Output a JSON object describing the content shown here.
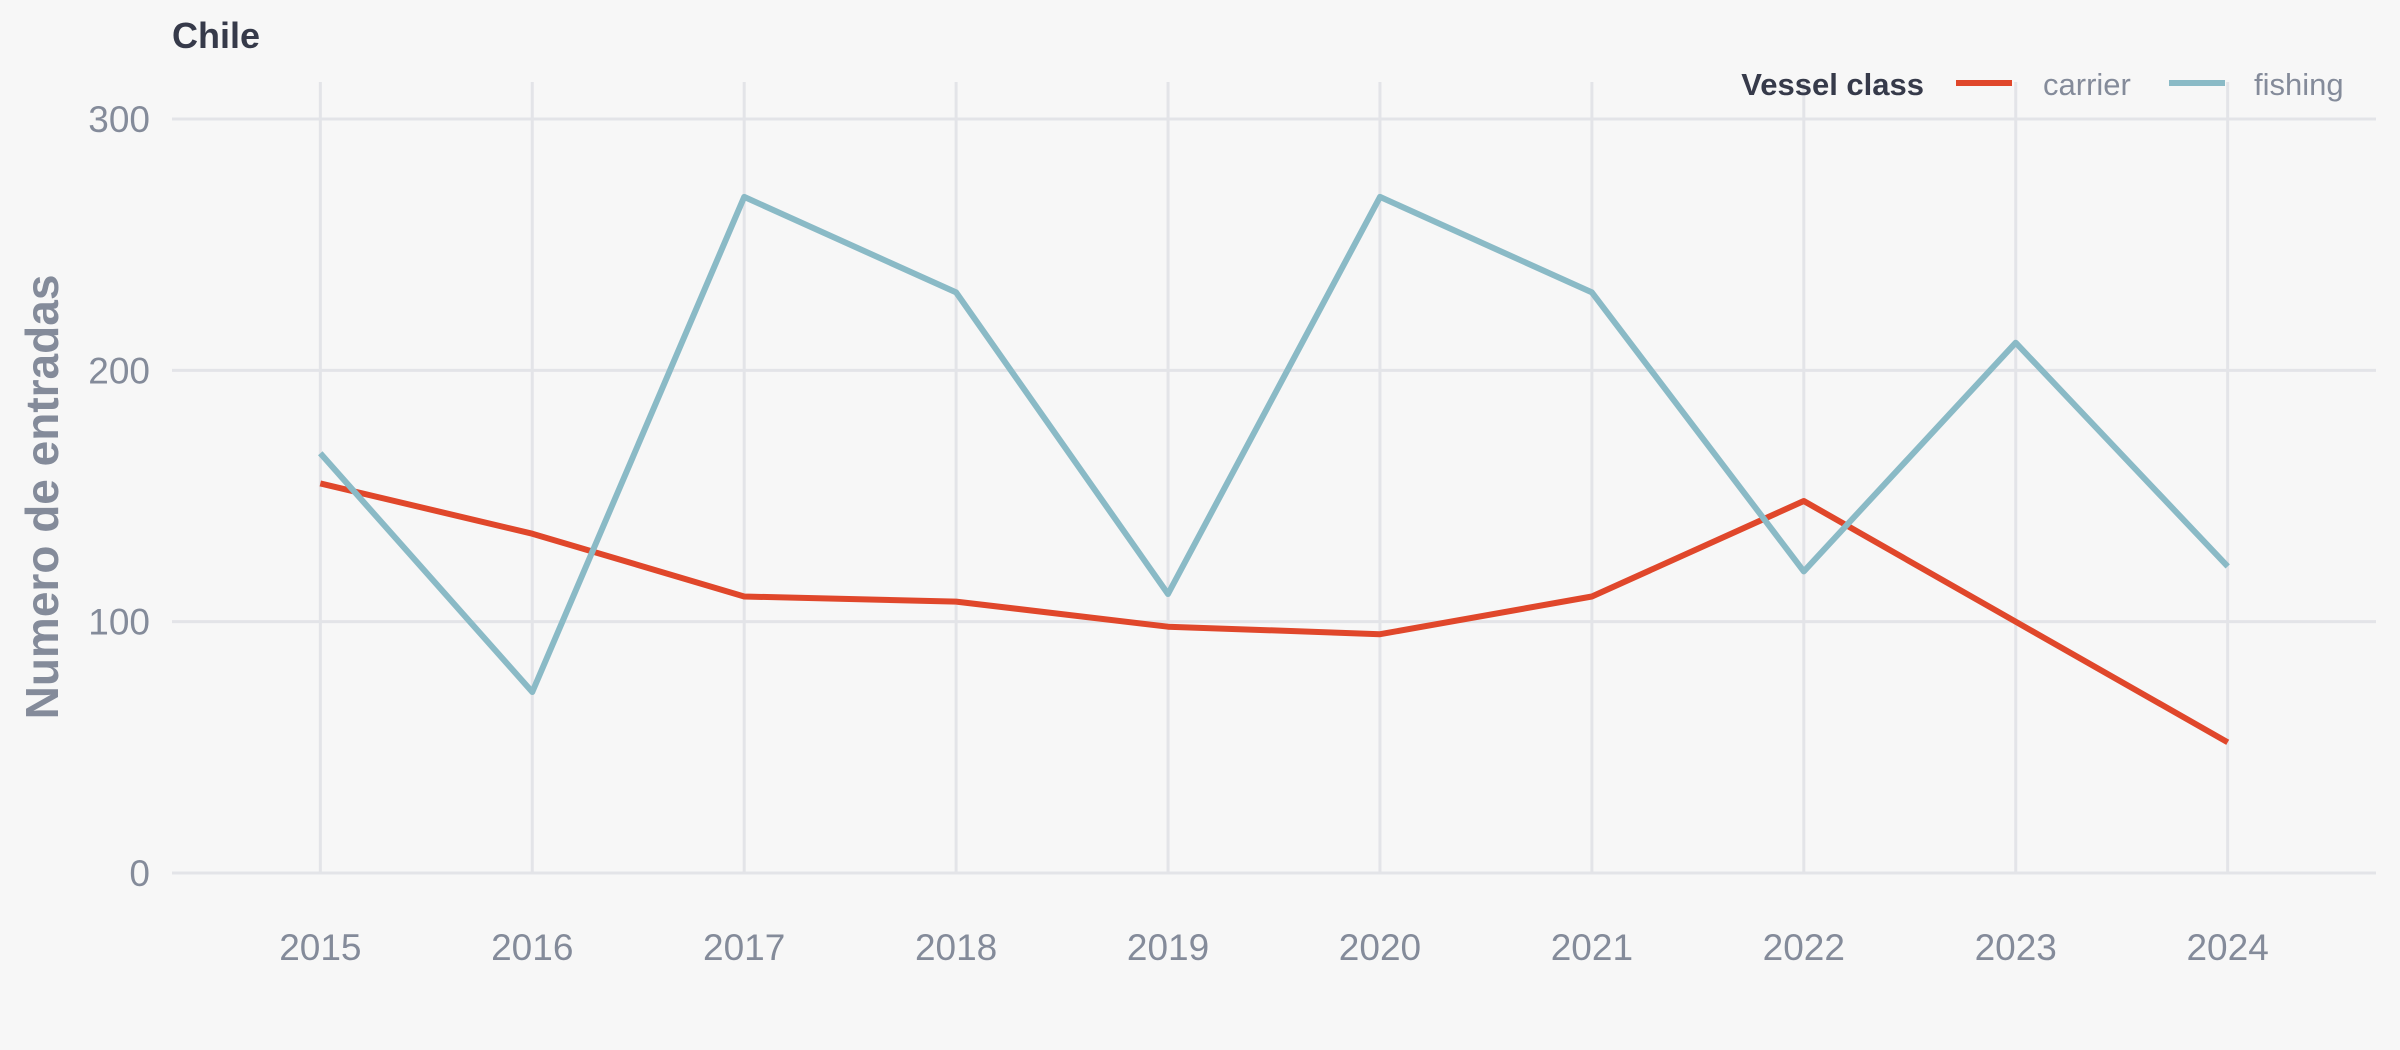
{
  "chart_data": {
    "type": "line",
    "title": "Chile",
    "xlabel": "",
    "ylabel": "Numero de entradas",
    "x": [
      2015,
      2016,
      2017,
      2018,
      2019,
      2020,
      2021,
      2022,
      2023,
      2024
    ],
    "xlim": [
      2014.3,
      2024.7
    ],
    "ylim": [
      0,
      300
    ],
    "yticks": [
      0,
      100,
      200,
      300
    ],
    "grid": true,
    "legend": {
      "title": "Vessel class",
      "placement": "top-right"
    },
    "series": [
      {
        "name": "carrier",
        "color": "#e0472b",
        "values": [
          155,
          135,
          110,
          108,
          98,
          95,
          110,
          148,
          100,
          52
        ]
      },
      {
        "name": "fishing",
        "color": "#8abac6",
        "values": [
          167,
          72,
          269,
          231,
          111,
          269,
          231,
          120,
          211,
          122
        ]
      }
    ]
  }
}
